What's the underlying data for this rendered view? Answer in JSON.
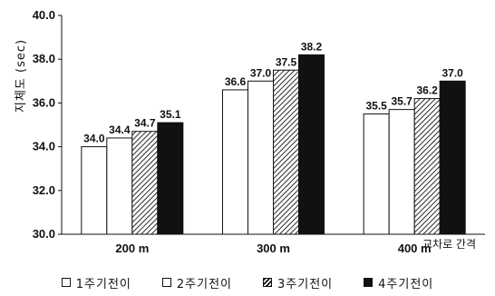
{
  "chart_data": {
    "type": "bar",
    "categories": [
      "200 m",
      "300 m",
      "400 m"
    ],
    "series": [
      {
        "name": "1주기전이",
        "values": [
          34.0,
          36.6,
          35.5
        ],
        "fill": "#ffffff"
      },
      {
        "name": "2주기전이",
        "values": [
          34.4,
          37.0,
          35.7
        ],
        "fill": "#ffffff"
      },
      {
        "name": "3주기전이",
        "values": [
          34.7,
          37.5,
          36.2
        ],
        "fill": "hatched"
      },
      {
        "name": "4주기전이",
        "values": [
          35.1,
          38.2,
          37.0
        ],
        "fill": "#111111"
      }
    ],
    "data_labels": [
      [
        "34.0",
        "36.6",
        "35.5"
      ],
      [
        "34.4",
        "37.0",
        "35.7"
      ],
      [
        "34.7",
        "37.5",
        "36.2"
      ],
      [
        "35.1",
        "38.2",
        "37.0"
      ]
    ],
    "ylabel": "지체도 (sec)",
    "xlabel": "",
    "annotation": "교차로 간격",
    "ylim": [
      30.0,
      40.0
    ],
    "yticks": [
      "30.0",
      "32.0",
      "34.0",
      "36.0",
      "38.0",
      "40.0"
    ],
    "grid": false,
    "legend_position": "bottom",
    "colors": {
      "axis": "#111111",
      "white_bar": "#ffffff",
      "black_bar": "#111111"
    }
  }
}
